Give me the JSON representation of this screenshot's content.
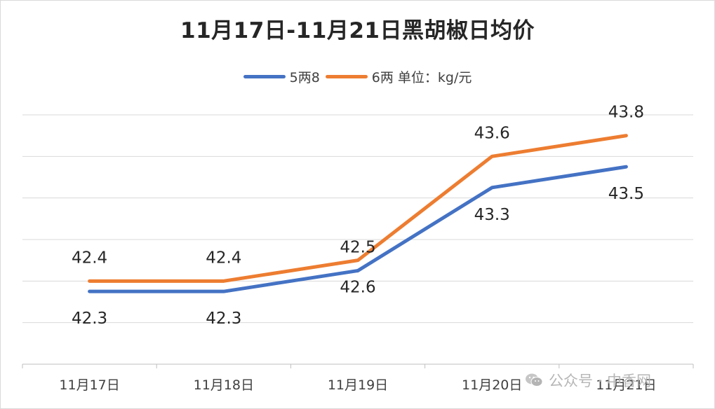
{
  "chart_data": {
    "type": "line",
    "title": "11月17日-11月21日黑胡椒日均价",
    "categories": [
      "11月17日",
      "11月18日",
      "11月19日",
      "11月20日",
      "11月21日"
    ],
    "series": [
      {
        "name": "5两8",
        "color": "#4472C4",
        "values": [
          42.3,
          42.3,
          42.5,
          43.3,
          43.5
        ],
        "labels": [
          "42.3",
          "42.3",
          "42.5",
          "43.3",
          "43.5"
        ],
        "label_pos": [
          "below",
          "below",
          "above",
          "below",
          "below"
        ]
      },
      {
        "name": "6两 单位：kg/元",
        "color": "#ED7D31",
        "values": [
          42.4,
          42.4,
          42.6,
          43.6,
          43.8
        ],
        "labels": [
          "42.4",
          "42.4",
          "42.6",
          "43.6",
          "43.8"
        ],
        "label_pos": [
          "above",
          "above",
          "below",
          "above",
          "above"
        ]
      }
    ],
    "ylim": [
      41.6,
      44.0
    ],
    "y_gridlines": [
      41.6,
      42.0,
      42.4,
      42.8,
      43.2,
      43.6,
      44.0
    ],
    "grid": true,
    "legend_position": "top"
  },
  "watermark": {
    "text": "公众号 · 中香网",
    "icon": "wechat-icon"
  }
}
